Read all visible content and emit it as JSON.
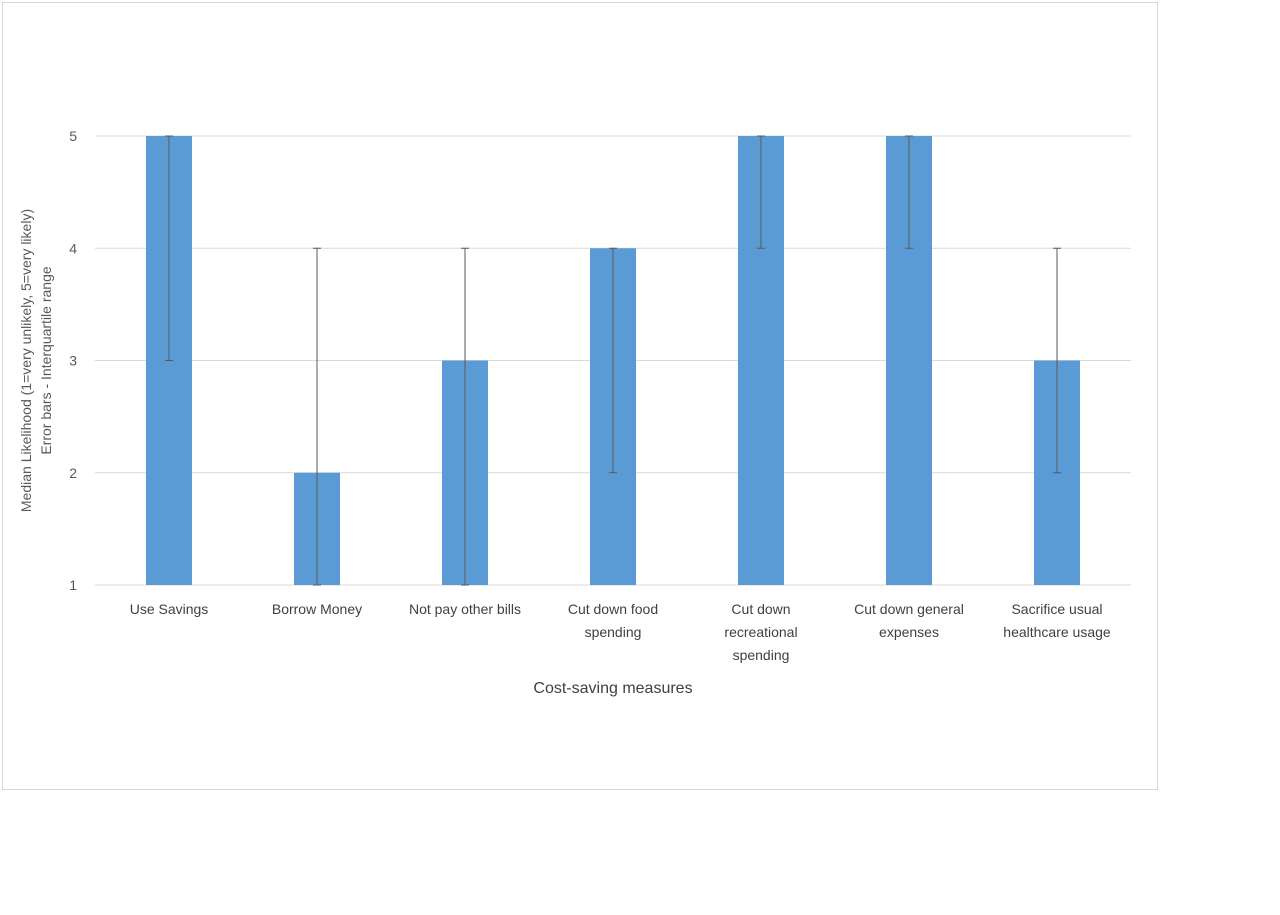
{
  "chart_data": {
    "type": "bar",
    "categories": [
      [
        "Use Savings"
      ],
      [
        "Borrow Money"
      ],
      [
        "Not pay other bills"
      ],
      [
        "Cut down food",
        "spending"
      ],
      [
        "Cut down",
        "recreational",
        "spending"
      ],
      [
        "Cut down general",
        "expenses"
      ],
      [
        "Sacrifice usual",
        "healthcare usage"
      ]
    ],
    "values": [
      5,
      2,
      3,
      4,
      5,
      5,
      3
    ],
    "error_bars": [
      {
        "low": 3,
        "high": 5
      },
      {
        "low": 1,
        "high": 4
      },
      {
        "low": 1,
        "high": 4
      },
      {
        "low": 2,
        "high": 4
      },
      {
        "low": 4,
        "high": 5
      },
      {
        "low": 4,
        "high": 5
      },
      {
        "low": 2,
        "high": 4
      }
    ],
    "xlabel": "Cost-saving measures",
    "ylabel_lines": [
      "Median Likelihood (1=very unlikely, 5=very likely)",
      "Error bars - Interquartile range"
    ],
    "ylim": [
      1,
      5
    ],
    "yticks": [
      "1",
      "2",
      "3",
      "4",
      "5"
    ],
    "grid": true,
    "legend": "none",
    "colors": {
      "bar": "#5b9bd5",
      "error_bar": "#595959",
      "grid": "#d9d9d9",
      "axis": "#d9d9d9"
    }
  }
}
